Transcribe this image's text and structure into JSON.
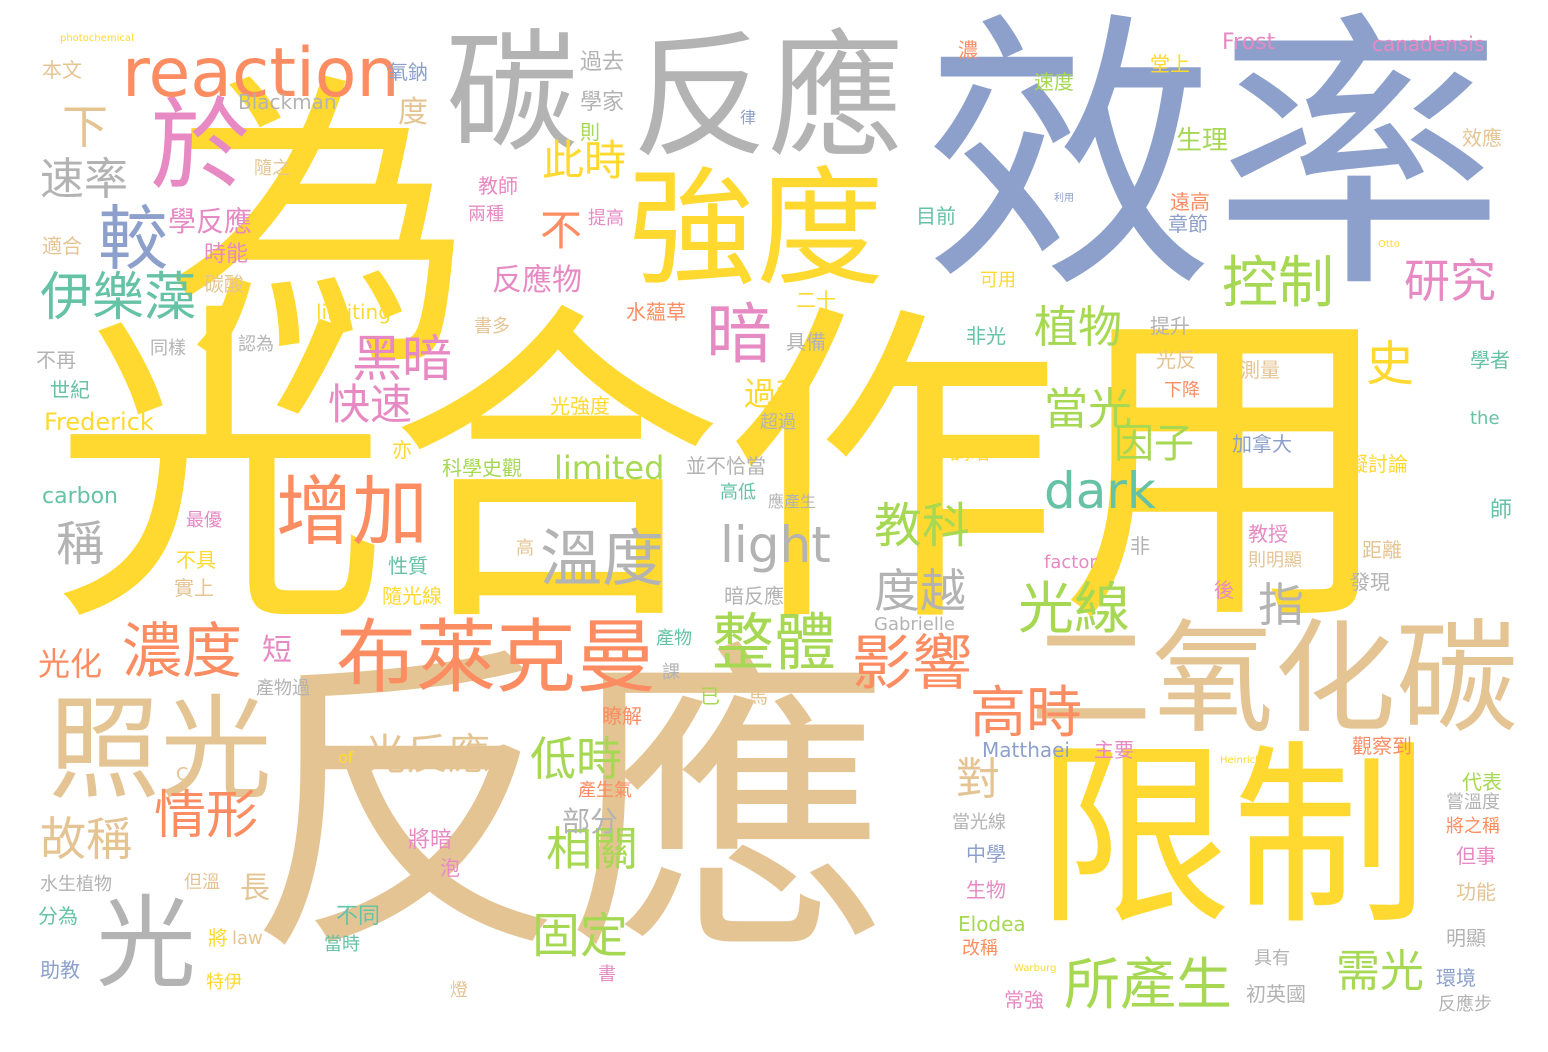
{
  "colors": {
    "yellow": "#ffd92f",
    "blue": "#8da0cb",
    "tan": "#e5c494",
    "gray": "#b3b3b3",
    "green": "#a6d854",
    "orange": "#fc8d62",
    "pink": "#e78ac3",
    "teal": "#66c2a5"
  },
  "words": [
    {
      "text": "光合作用",
      "color": "yellow"
    },
    {
      "text": "反應",
      "color": "tan"
    },
    {
      "text": "效率",
      "color": "blue"
    },
    {
      "text": "為",
      "color": "yellow"
    },
    {
      "text": "反應",
      "color": "gray"
    },
    {
      "text": "限制",
      "color": "yellow"
    },
    {
      "text": "碳",
      "color": "gray"
    },
    {
      "text": "強度",
      "color": "yellow"
    },
    {
      "text": "二氧化碳",
      "color": "tan"
    },
    {
      "text": "照光",
      "color": "tan"
    },
    {
      "text": "於",
      "color": "pink"
    },
    {
      "text": "reaction",
      "color": "orange"
    },
    {
      "text": "光",
      "color": "gray"
    },
    {
      "text": "布萊克曼",
      "color": "orange"
    },
    {
      "text": "增加",
      "color": "orange"
    },
    {
      "text": "溫度",
      "color": "gray"
    },
    {
      "text": "整體",
      "color": "green"
    },
    {
      "text": "較",
      "color": "blue"
    },
    {
      "text": "暗",
      "color": "pink"
    },
    {
      "text": "控制",
      "color": "green"
    },
    {
      "text": "伊樂藻",
      "color": "teal"
    },
    {
      "text": "光線",
      "color": "green"
    },
    {
      "text": "影響",
      "color": "orange"
    },
    {
      "text": "高時",
      "color": "orange"
    },
    {
      "text": "所產生",
      "color": "green"
    },
    {
      "text": "濃度",
      "color": "orange"
    },
    {
      "text": "light",
      "color": "gray"
    },
    {
      "text": "dark",
      "color": "teal"
    },
    {
      "text": "教科",
      "color": "green"
    },
    {
      "text": "度越",
      "color": "gray"
    },
    {
      "text": "黑暗",
      "color": "pink"
    },
    {
      "text": "研究",
      "color": "pink"
    },
    {
      "text": "情形",
      "color": "orange"
    },
    {
      "text": "光反應",
      "color": "tan"
    },
    {
      "text": "低時",
      "color": "green"
    },
    {
      "text": "相關",
      "color": "green"
    },
    {
      "text": "固定",
      "color": "green"
    },
    {
      "text": "需光",
      "color": "green"
    },
    {
      "text": "故稱",
      "color": "tan"
    },
    {
      "text": "快速",
      "color": "pink"
    },
    {
      "text": "植物",
      "color": "green"
    },
    {
      "text": "當光",
      "color": "green"
    },
    {
      "text": "此時",
      "color": "yellow"
    },
    {
      "text": "速率",
      "color": "gray"
    },
    {
      "text": "史",
      "color": "yellow"
    },
    {
      "text": "因子",
      "color": "green"
    },
    {
      "text": "指",
      "color": "gray"
    },
    {
      "text": "對",
      "color": "tan"
    },
    {
      "text": "稱",
      "color": "gray"
    },
    {
      "text": "下",
      "color": "tan"
    },
    {
      "text": "不",
      "color": "orange"
    },
    {
      "text": "學反應",
      "color": "pink"
    },
    {
      "text": "反應物",
      "color": "pink"
    },
    {
      "text": "Blackman",
      "color": "gray"
    },
    {
      "text": "limited",
      "color": "green"
    },
    {
      "text": "過程",
      "color": "yellow"
    },
    {
      "text": "部分",
      "color": "gray"
    },
    {
      "text": "長",
      "color": "tan"
    },
    {
      "text": "短",
      "color": "pink"
    },
    {
      "text": "光化",
      "color": "orange"
    },
    {
      "text": "Frost",
      "color": "pink"
    },
    {
      "text": "canadensis",
      "color": "pink"
    },
    {
      "text": "photochemical",
      "color": "yellow"
    },
    {
      "text": "本文",
      "color": "tan"
    },
    {
      "text": "氧鈉",
      "color": "blue"
    },
    {
      "text": "度",
      "color": "tan"
    },
    {
      "text": "過去",
      "color": "gray"
    },
    {
      "text": "學家",
      "color": "gray"
    },
    {
      "text": "則",
      "color": "green"
    },
    {
      "text": "濃",
      "color": "orange"
    },
    {
      "text": "速度",
      "color": "green"
    },
    {
      "text": "堂上",
      "color": "yellow"
    },
    {
      "text": "生理",
      "color": "green"
    },
    {
      "text": "效應",
      "color": "tan"
    },
    {
      "text": "遠高",
      "color": "orange"
    },
    {
      "text": "章節",
      "color": "blue"
    },
    {
      "text": "隨之",
      "color": "tan"
    },
    {
      "text": "適合",
      "color": "tan"
    },
    {
      "text": "時能",
      "color": "pink"
    },
    {
      "text": "碳酸",
      "color": "tan"
    },
    {
      "text": "教師",
      "color": "pink"
    },
    {
      "text": "兩種",
      "color": "pink"
    },
    {
      "text": "提高",
      "color": "pink"
    },
    {
      "text": "目前",
      "color": "teal"
    },
    {
      "text": "二十",
      "color": "yellow"
    },
    {
      "text": "水蘊草",
      "color": "orange"
    },
    {
      "text": "書多",
      "color": "tan"
    },
    {
      "text": "具備",
      "color": "gray"
    },
    {
      "text": "limiting",
      "color": "yellow"
    },
    {
      "text": "認為",
      "color": "gray"
    },
    {
      "text": "不再",
      "color": "gray"
    },
    {
      "text": "同樣",
      "color": "gray"
    },
    {
      "text": "世紀",
      "color": "teal"
    },
    {
      "text": "Frederick",
      "color": "yellow"
    },
    {
      "text": "光強度",
      "color": "yellow"
    },
    {
      "text": "非光",
      "color": "teal"
    },
    {
      "text": "提升",
      "color": "gray"
    },
    {
      "text": "光反",
      "color": "tan"
    },
    {
      "text": "下降",
      "color": "orange"
    },
    {
      "text": "測量",
      "color": "tan"
    },
    {
      "text": "學者",
      "color": "teal"
    },
    {
      "text": "the",
      "color": "teal"
    },
    {
      "text": "可用",
      "color": "yellow"
    },
    {
      "text": "加拿大",
      "color": "blue"
    },
    {
      "text": "擬討論",
      "color": "yellow"
    },
    {
      "text": "超過",
      "color": "gray"
    },
    {
      "text": "亦",
      "color": "yellow"
    },
    {
      "text": "科學史觀",
      "color": "green"
    },
    {
      "text": "並不恰當",
      "color": "gray"
    },
    {
      "text": "調暗",
      "color": "yellow"
    },
    {
      "text": "carbon",
      "color": "teal"
    },
    {
      "text": "高低",
      "color": "teal"
    },
    {
      "text": "應產生",
      "color": "gray"
    },
    {
      "text": "師",
      "color": "teal"
    },
    {
      "text": "最優",
      "color": "pink"
    },
    {
      "text": "高",
      "color": "tan"
    },
    {
      "text": "非",
      "color": "gray"
    },
    {
      "text": "教授",
      "color": "pink"
    },
    {
      "text": "距離",
      "color": "tan"
    },
    {
      "text": "factor",
      "color": "pink"
    },
    {
      "text": "則明顯",
      "color": "tan"
    },
    {
      "text": "發現",
      "color": "gray"
    },
    {
      "text": "不具",
      "color": "yellow"
    },
    {
      "text": "實上",
      "color": "tan"
    },
    {
      "text": "性質",
      "color": "teal"
    },
    {
      "text": "隨光線",
      "color": "yellow"
    },
    {
      "text": "暗反應",
      "color": "gray"
    },
    {
      "text": "後",
      "color": "pink"
    },
    {
      "text": "Gabrielle",
      "color": "gray"
    },
    {
      "text": "產物",
      "color": "teal"
    },
    {
      "text": "產物過",
      "color": "gray"
    },
    {
      "text": "已",
      "color": "green"
    },
    {
      "text": "馬",
      "color": "tan"
    },
    {
      "text": "課",
      "color": "gray"
    },
    {
      "text": "瞭解",
      "color": "orange"
    },
    {
      "text": "Matthaei",
      "color": "blue"
    },
    {
      "text": "主要",
      "color": "pink"
    },
    {
      "text": "代表",
      "color": "green"
    },
    {
      "text": "觀察到",
      "color": "orange"
    },
    {
      "text": "嘗溫度",
      "color": "gray"
    },
    {
      "text": "將之稱",
      "color": "orange"
    },
    {
      "text": "但事",
      "color": "pink"
    },
    {
      "text": "of",
      "color": "yellow"
    },
    {
      "text": "產生氣",
      "color": "orange"
    },
    {
      "text": "當光線",
      "color": "gray"
    },
    {
      "text": "將暗",
      "color": "pink"
    },
    {
      "text": "泡",
      "color": "pink"
    },
    {
      "text": "中學",
      "color": "blue"
    },
    {
      "text": "生物",
      "color": "pink"
    },
    {
      "text": "水生植物",
      "color": "gray"
    },
    {
      "text": "但溫",
      "color": "tan"
    },
    {
      "text": "功能",
      "color": "tan"
    },
    {
      "text": "不同",
      "color": "teal"
    },
    {
      "text": "分為",
      "color": "teal"
    },
    {
      "text": "Elodea",
      "color": "green"
    },
    {
      "text": "改稱",
      "color": "orange"
    },
    {
      "text": "明顯",
      "color": "gray"
    },
    {
      "text": "將",
      "color": "yellow"
    },
    {
      "text": "law",
      "color": "tan"
    },
    {
      "text": "當時",
      "color": "teal"
    },
    {
      "text": "助教",
      "color": "blue"
    },
    {
      "text": "特伊",
      "color": "yellow"
    },
    {
      "text": "常強",
      "color": "pink"
    },
    {
      "text": "燈",
      "color": "tan"
    },
    {
      "text": "書",
      "color": "pink"
    },
    {
      "text": "具有",
      "color": "gray"
    },
    {
      "text": "初英國",
      "color": "gray"
    },
    {
      "text": "環境",
      "color": "blue"
    },
    {
      "text": "反應步",
      "color": "gray"
    },
    {
      "text": "C",
      "color": "tan"
    },
    {
      "text": "律",
      "color": "blue"
    },
    {
      "text": "利用",
      "color": "blue"
    },
    {
      "text": "Otto",
      "color": "yellow"
    },
    {
      "text": "Heinrich",
      "color": "yellow"
    },
    {
      "text": "Warburg",
      "color": "yellow"
    }
  ]
}
